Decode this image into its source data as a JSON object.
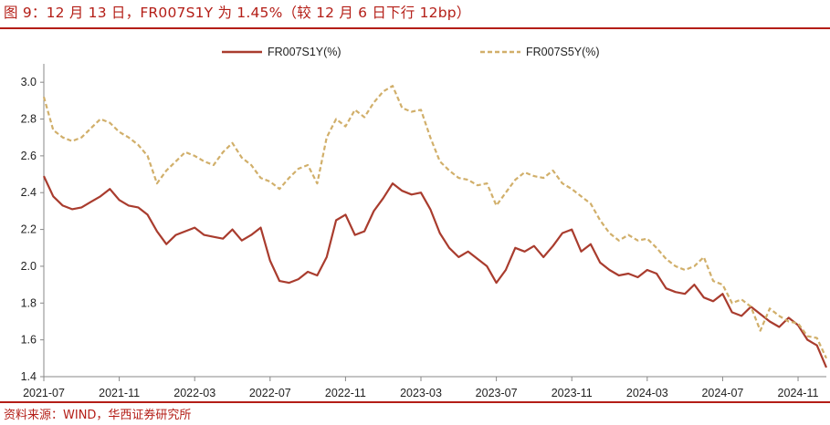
{
  "title": "图 9：12 月 13 日，FR007S1Y 为 1.45%（较 12 月 6 日下行 12bp）",
  "source": "资料来源：WIND，华西证券研究所",
  "chart_data": {
    "type": "line",
    "title": "图 9：12 月 13 日，FR007S1Y 为 1.45%（较 12 月 6 日下行 12bp）",
    "xlabel": "",
    "ylabel": "",
    "ylim": [
      1.4,
      3.1
    ],
    "yticks": [
      "1.4",
      "1.6",
      "1.8",
      "2.0",
      "2.2",
      "2.4",
      "2.6",
      "2.8",
      "3.0"
    ],
    "xticks": [
      "2021-07",
      "2021-11",
      "2022-03",
      "2022-07",
      "2022-11",
      "2023-03",
      "2023-07",
      "2023-11",
      "2024-03",
      "2024-07",
      "2024-11"
    ],
    "grid": false,
    "legend": "top-center",
    "x_unit": "months since 2021-07",
    "x": [
      0,
      0.5,
      1,
      1.5,
      2,
      2.5,
      3,
      3.5,
      4,
      4.5,
      5,
      5.5,
      6,
      6.5,
      7,
      7.5,
      8,
      8.5,
      9,
      9.5,
      10,
      10.5,
      11,
      11.5,
      12,
      12.5,
      13,
      13.5,
      14,
      14.5,
      15,
      15.5,
      16,
      16.5,
      17,
      17.5,
      18,
      18.5,
      19,
      19.5,
      20,
      20.5,
      21,
      21.5,
      22,
      22.5,
      23,
      23.5,
      24,
      24.5,
      25,
      25.5,
      26,
      26.5,
      27,
      27.5,
      28,
      28.5,
      29,
      29.5,
      30,
      30.5,
      31,
      31.5,
      32,
      32.5,
      33,
      33.5,
      34,
      34.5,
      35,
      35.5,
      36,
      36.5,
      37,
      37.5,
      38,
      38.5,
      39,
      39.5,
      40,
      40.5,
      41,
      41.5
    ],
    "series": [
      {
        "name": "FR007S1Y(%)",
        "color": "#a93c2e",
        "dash": "solid",
        "values": [
          2.49,
          2.38,
          2.33,
          2.31,
          2.32,
          2.35,
          2.38,
          2.42,
          2.36,
          2.33,
          2.32,
          2.28,
          2.19,
          2.12,
          2.17,
          2.19,
          2.21,
          2.17,
          2.16,
          2.15,
          2.2,
          2.14,
          2.17,
          2.21,
          2.03,
          1.92,
          1.91,
          1.93,
          1.97,
          1.95,
          2.05,
          2.25,
          2.28,
          2.17,
          2.19,
          2.3,
          2.37,
          2.45,
          2.41,
          2.39,
          2.4,
          2.31,
          2.18,
          2.1,
          2.05,
          2.08,
          2.04,
          2.0,
          1.91,
          1.98,
          2.1,
          2.08,
          2.11,
          2.05,
          2.11,
          2.18,
          2.2,
          2.08,
          2.12,
          2.02,
          1.98,
          1.95,
          1.96,
          1.94,
          1.98,
          1.96,
          1.88,
          1.86,
          1.85,
          1.9,
          1.83,
          1.81,
          1.85,
          1.75,
          1.73,
          1.78,
          1.74,
          1.7,
          1.67,
          1.72,
          1.68,
          1.6,
          1.57,
          1.45
        ]
      },
      {
        "name": "FR007S5Y(%)",
        "color": "#d1af6a",
        "dash": "dashed",
        "values": [
          2.92,
          2.74,
          2.7,
          2.68,
          2.7,
          2.75,
          2.8,
          2.78,
          2.73,
          2.7,
          2.66,
          2.6,
          2.45,
          2.52,
          2.57,
          2.62,
          2.6,
          2.57,
          2.55,
          2.62,
          2.67,
          2.59,
          2.55,
          2.48,
          2.46,
          2.42,
          2.48,
          2.53,
          2.55,
          2.45,
          2.7,
          2.8,
          2.76,
          2.85,
          2.81,
          2.89,
          2.95,
          2.98,
          2.86,
          2.84,
          2.85,
          2.7,
          2.57,
          2.52,
          2.48,
          2.47,
          2.44,
          2.45,
          2.33,
          2.4,
          2.47,
          2.51,
          2.49,
          2.48,
          2.52,
          2.45,
          2.42,
          2.38,
          2.34,
          2.25,
          2.18,
          2.14,
          2.17,
          2.14,
          2.15,
          2.1,
          2.04,
          2.0,
          1.98,
          2.0,
          2.05,
          1.92,
          1.9,
          1.8,
          1.82,
          1.78,
          1.65,
          1.77,
          1.73,
          1.7,
          1.69,
          1.62,
          1.61,
          1.5
        ]
      }
    ]
  }
}
